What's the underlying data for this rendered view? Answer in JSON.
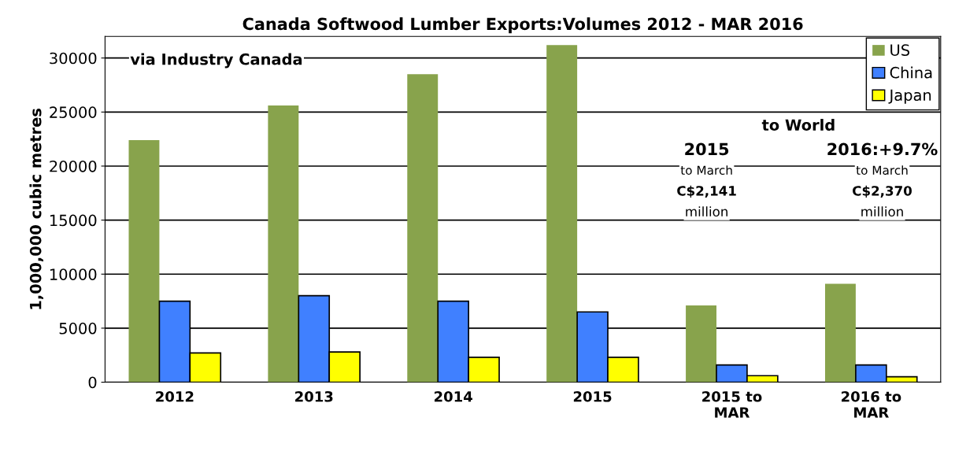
{
  "chart_data": {
    "type": "bar",
    "title": "Canada Softwood Lumber Exports:Volumes 2012 - MAR 2016",
    "ylabel": "1,000,000 cubic metres",
    "categories": [
      "2012",
      "2013",
      "2014",
      "2015",
      "2015 to\nMAR",
      "2016 to\nMAR"
    ],
    "series": [
      {
        "name": "US",
        "color": "#88a34c",
        "values": [
          22400,
          25600,
          28500,
          31200,
          7100,
          9100
        ]
      },
      {
        "name": "China",
        "color": "#4080ff",
        "values": [
          7500,
          8000,
          7500,
          6500,
          1600,
          1600
        ]
      },
      {
        "name": "Japan",
        "color": "#ffff00",
        "values": [
          2700,
          2800,
          2300,
          2300,
          600,
          500
        ]
      }
    ],
    "ylim": [
      0,
      32000
    ],
    "yticks": [
      0,
      5000,
      10000,
      15000,
      20000,
      25000,
      30000
    ],
    "grid": "y",
    "legend": "top right",
    "annotations": [
      "via Industry Canada",
      "to World",
      "2015",
      "to March",
      "C$2,141",
      "million",
      "2016:+9.7%",
      "to March",
      "C$2,370",
      "million"
    ]
  }
}
